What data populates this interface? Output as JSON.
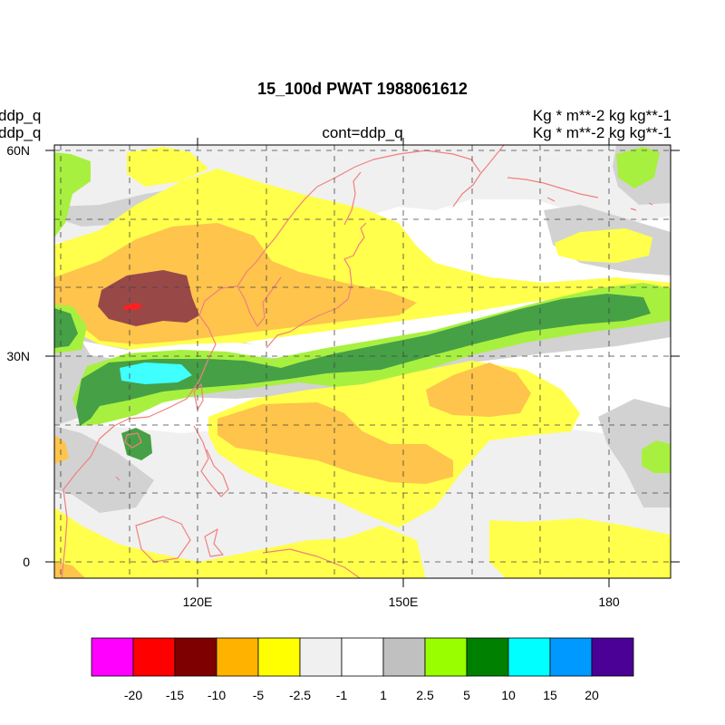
{
  "title": "15_100d PWAT  1988061612",
  "left_labels": [
    "ddp_q",
    "ddp_q"
  ],
  "right_labels": [
    "Kg  * m**-2 kg kg**-1",
    "Kg  * m**-2 kg kg**-1"
  ],
  "center_label": "cont=ddp_q",
  "lon_ticks": [
    {
      "value": 120,
      "label": "120E"
    },
    {
      "value": 150,
      "label": "150E"
    },
    {
      "value": 180,
      "label": "180"
    }
  ],
  "lat_ticks": [
    {
      "value": 0,
      "label": "0"
    },
    {
      "value": 30,
      "label": "30N"
    },
    {
      "value": 60,
      "label": "60N"
    }
  ],
  "extent": {
    "lon": [
      99,
      187
    ],
    "lat": [
      -2,
      60
    ]
  },
  "grid": {
    "lon_step": 10,
    "lat_step": 10,
    "style": "dashed"
  },
  "colorbar": {
    "colors": [
      "#ff00ff",
      "#ff0000",
      "#7f0000",
      "#ffb200",
      "#ffff00",
      "#f0f0f0",
      "#ffffff",
      "#c0c0c0",
      "#99ff00",
      "#008000",
      "#00ffff",
      "#0099ff",
      "#4b0096"
    ],
    "labels": [
      "-20",
      "-15",
      "-10",
      "-5",
      "-2.5",
      "-1",
      "1",
      "2.5",
      "5",
      "10",
      "15",
      "20"
    ]
  },
  "coastline_color": "#f08080",
  "field_palette": {
    "gray": "#d2d2d2",
    "light": "#f0f0f0",
    "yellow": "#ffff4c",
    "orange": "#fec44c",
    "maroon": "#994848",
    "red": "#ff2020",
    "lime": "#a8f040",
    "green": "#46a046",
    "cyan": "#40ffff"
  }
}
